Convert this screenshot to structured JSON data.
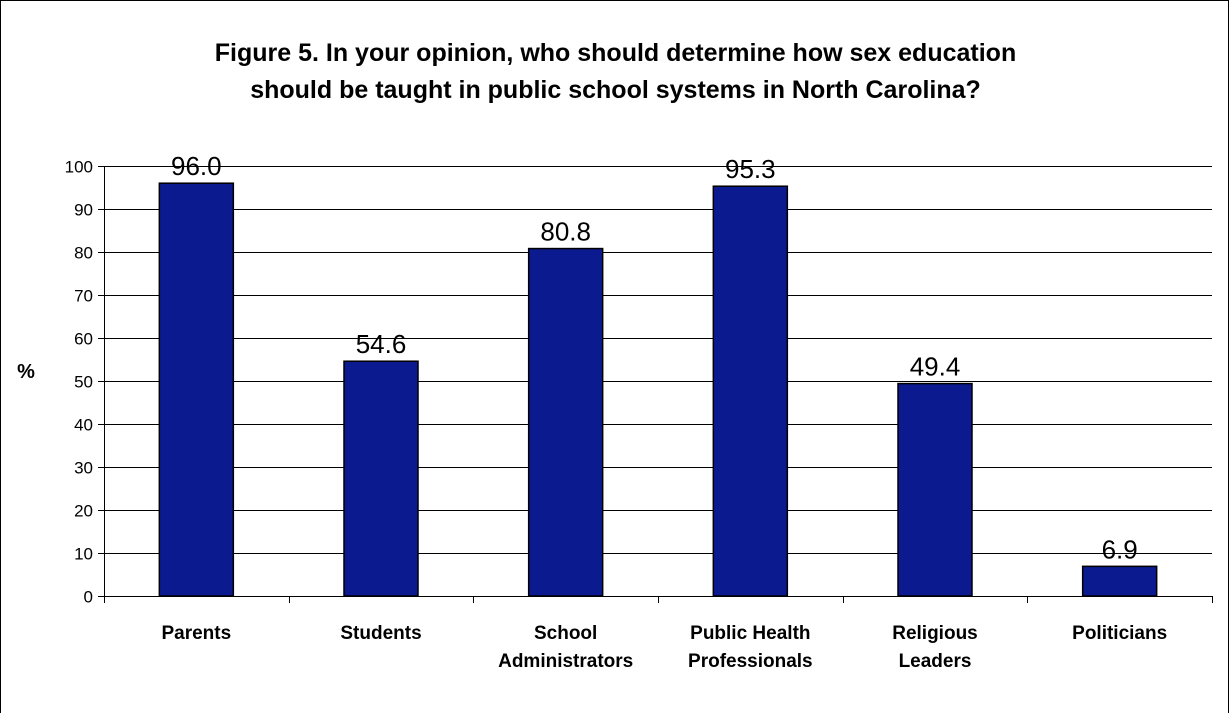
{
  "chart_data": {
    "type": "bar",
    "title_lines": [
      "Figure 5.  In your opinion, who should determine how sex education",
      "should be taught in public school systems in North Carolina?"
    ],
    "ylabel": "%",
    "xlabel": "",
    "ylim": [
      0,
      100
    ],
    "yticks": [
      0,
      10,
      20,
      30,
      40,
      50,
      60,
      70,
      80,
      90,
      100
    ],
    "grid": true,
    "categories": [
      [
        "Parents"
      ],
      [
        "Students"
      ],
      [
        "School",
        "Administrators"
      ],
      [
        "Public Health",
        "Professionals"
      ],
      [
        "Religious",
        "Leaders"
      ],
      [
        "Politicians"
      ]
    ],
    "values": [
      96.0,
      54.6,
      80.8,
      95.3,
      49.4,
      6.9
    ],
    "data_labels": [
      "96.0",
      "54.6",
      "80.8",
      "95.3",
      "49.4",
      "6.9"
    ],
    "bar_color": "#0b1a8f"
  }
}
